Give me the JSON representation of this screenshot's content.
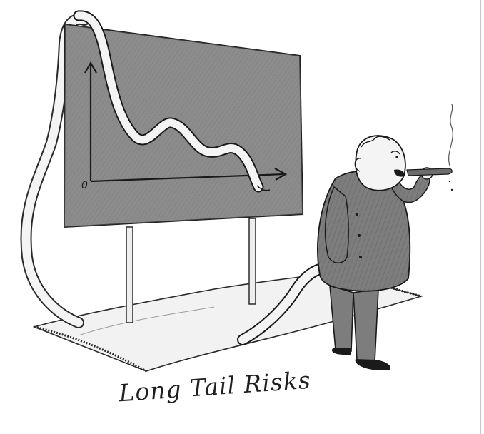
{
  "caption": "Long Tail Risks",
  "chart_axis_origin_label": "0"
}
